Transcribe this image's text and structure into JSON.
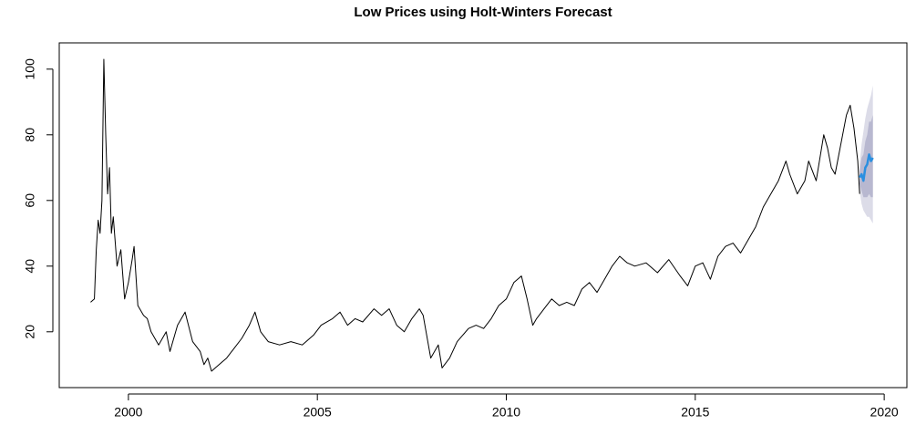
{
  "chart_data": {
    "type": "line",
    "title": "Low Prices using Holt-Winters Forecast",
    "xlim": [
      1998.17,
      2020.6
    ],
    "ylim": [
      3,
      108
    ],
    "xticks": [
      2000,
      2005,
      2010,
      2015,
      2020
    ],
    "yticks": [
      20,
      40,
      60,
      80,
      100
    ],
    "bands": [
      {
        "color": "#dcdce8",
        "x": [
          2019.35,
          2019.4,
          2019.45,
          2019.5,
          2019.55,
          2019.6,
          2019.65,
          2019.7
        ],
        "lower": [
          63,
          59,
          57,
          56,
          55,
          55,
          54,
          53
        ],
        "upper": [
          71,
          77,
          81,
          85,
          88,
          90,
          92,
          95
        ]
      },
      {
        "color": "#b8b8d0",
        "x": [
          2019.35,
          2019.4,
          2019.45,
          2019.5,
          2019.55,
          2019.6,
          2019.65,
          2019.7
        ],
        "lower": [
          65,
          63,
          61,
          61,
          61,
          62,
          61,
          61
        ],
        "upper": [
          69,
          73,
          74,
          78,
          80,
          84,
          84,
          86
        ]
      }
    ],
    "series": [
      {
        "color": "#000000",
        "x": [
          1999.0,
          1999.1,
          1999.15,
          1999.2,
          1999.25,
          1999.3,
          1999.35,
          1999.4,
          1999.45,
          1999.5,
          1999.55,
          1999.6,
          1999.7,
          1999.8,
          1999.9,
          2000.0,
          2000.1,
          2000.15,
          2000.25,
          2000.4,
          2000.5,
          2000.6,
          2000.8,
          2001.0,
          2001.1,
          2001.3,
          2001.5,
          2001.7,
          2001.9,
          2002.0,
          2002.1,
          2002.2,
          2002.4,
          2002.6,
          2002.8,
          2003.0,
          2003.2,
          2003.35,
          2003.5,
          2003.7,
          2004.0,
          2004.3,
          2004.6,
          2004.9,
          2005.1,
          2005.4,
          2005.6,
          2005.8,
          2006.0,
          2006.2,
          2006.5,
          2006.7,
          2006.9,
          2007.1,
          2007.3,
          2007.5,
          2007.7,
          2007.8,
          2008.0,
          2008.2,
          2008.3,
          2008.5,
          2008.7,
          2009.0,
          2009.2,
          2009.4,
          2009.6,
          2009.8,
          2010.0,
          2010.2,
          2010.4,
          2010.55,
          2010.7,
          2010.8,
          2011.0,
          2011.2,
          2011.4,
          2011.6,
          2011.8,
          2012.0,
          2012.2,
          2012.4,
          2012.6,
          2012.8,
          2013.0,
          2013.2,
          2013.4,
          2013.7,
          2014.0,
          2014.3,
          2014.6,
          2014.8,
          2015.0,
          2015.2,
          2015.4,
          2015.6,
          2015.8,
          2016.0,
          2016.2,
          2016.4,
          2016.6,
          2016.8,
          2017.0,
          2017.2,
          2017.4,
          2017.5,
          2017.7,
          2017.9,
          2018.0,
          2018.2,
          2018.4,
          2018.5,
          2018.6,
          2018.7,
          2018.9,
          2019.0,
          2019.1,
          2019.2,
          2019.3,
          2019.35
        ],
        "values": [
          29,
          30,
          45,
          54,
          50,
          60,
          103,
          80,
          62,
          70,
          50,
          55,
          40,
          45,
          30,
          35,
          42,
          46,
          28,
          25,
          24,
          20,
          16,
          20,
          14,
          22,
          26,
          17,
          14,
          10,
          12,
          8,
          10,
          12,
          15,
          18,
          22,
          26,
          20,
          17,
          16,
          17,
          16,
          19,
          22,
          24,
          26,
          22,
          24,
          23,
          27,
          25,
          27,
          22,
          20,
          24,
          27,
          25,
          12,
          16,
          9,
          12,
          17,
          21,
          22,
          21,
          24,
          28,
          30,
          35,
          37,
          30,
          22,
          24,
          27,
          30,
          28,
          29,
          28,
          33,
          35,
          32,
          36,
          40,
          43,
          41,
          40,
          41,
          38,
          42,
          37,
          34,
          40,
          41,
          36,
          43,
          46,
          47,
          44,
          48,
          52,
          58,
          62,
          66,
          72,
          68,
          62,
          66,
          72,
          66,
          80,
          76,
          70,
          68,
          80,
          86,
          89,
          82,
          72,
          62
        ]
      },
      {
        "color": "#2a8fe0",
        "x": [
          2019.35,
          2019.4,
          2019.45,
          2019.5,
          2019.55,
          2019.6,
          2019.65,
          2019.7
        ],
        "values": [
          67,
          68,
          66,
          70,
          71,
          74,
          72,
          73
        ]
      }
    ]
  }
}
